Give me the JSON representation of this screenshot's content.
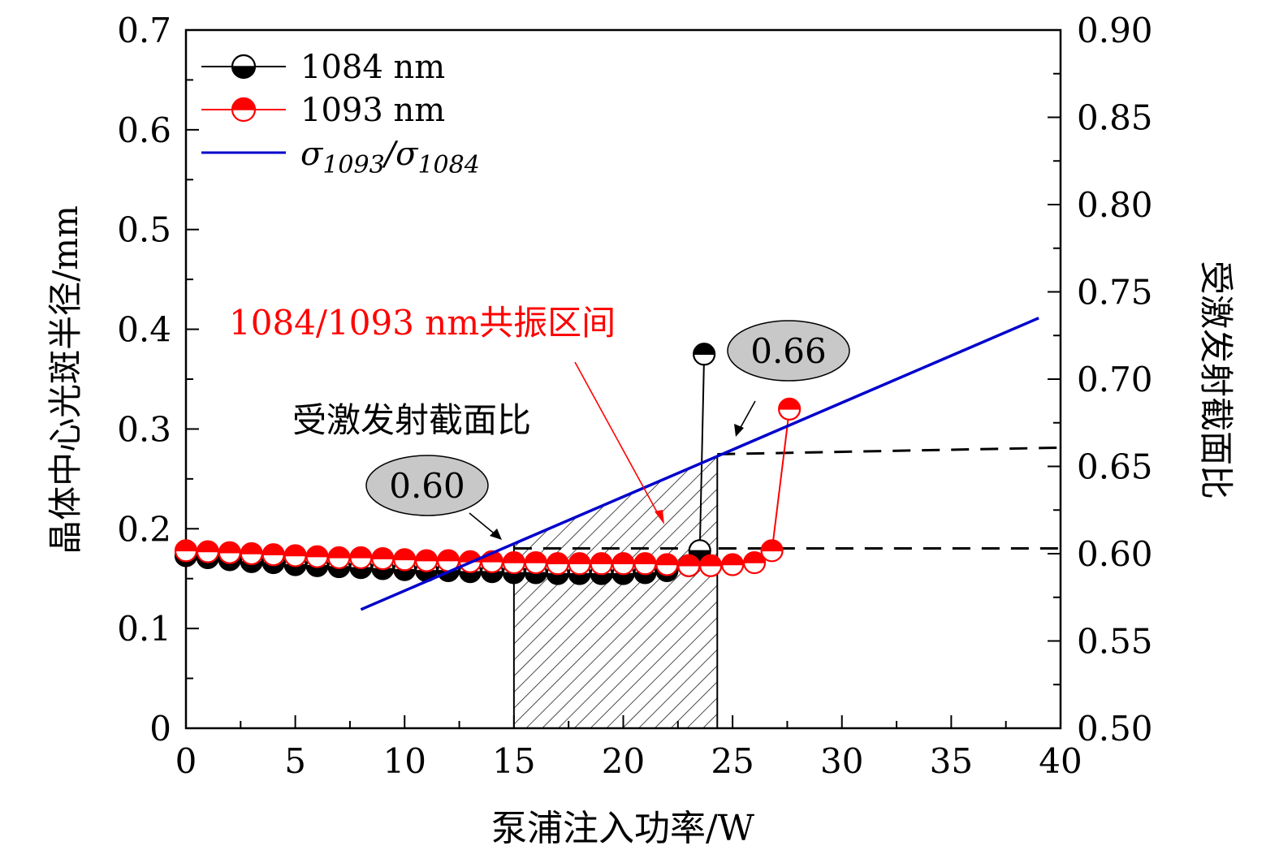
{
  "chart_data": {
    "type": "line",
    "xlabel": "泵浦注入功率/W",
    "ylabel_left": "晶体中心光斑半径/mm",
    "ylabel_right": "受激发射截面比",
    "xlim": [
      0,
      40
    ],
    "ylim_left": [
      0,
      0.7
    ],
    "ylim_right": [
      0.5,
      0.9
    ],
    "x_ticks": [
      "0",
      "5",
      "10",
      "15",
      "20",
      "25",
      "30",
      "35",
      "40"
    ],
    "y_left_ticks": [
      "0",
      "0.1",
      "0.2",
      "0.3",
      "0.4",
      "0.5",
      "0.6",
      "0.7"
    ],
    "y_right_ticks": [
      "0.50",
      "0.55",
      "0.60",
      "0.65",
      "0.70",
      "0.75",
      "0.80",
      "0.85",
      "0.90"
    ],
    "legend": {
      "placement": "top-left",
      "entries": [
        {
          "label": "1084 nm",
          "color": "#000000"
        },
        {
          "label": "1093 nm",
          "color": "#ff0000"
        },
        {
          "label": "σ1093/σ1084",
          "color": "#0000cc"
        }
      ]
    },
    "series": [
      {
        "name": "1084 nm",
        "axis": "left",
        "color": "#000000",
        "x": [
          0,
          1,
          2,
          3,
          4,
          5,
          6,
          7,
          8,
          9,
          10,
          11,
          12,
          13,
          14,
          15,
          16,
          17,
          18,
          19,
          20,
          21,
          22,
          23,
          23.5,
          23.7
        ],
        "y": [
          0.173,
          0.171,
          0.169,
          0.167,
          0.166,
          0.164,
          0.163,
          0.162,
          0.161,
          0.16,
          0.159,
          0.158,
          0.158,
          0.157,
          0.157,
          0.156,
          0.156,
          0.155,
          0.155,
          0.155,
          0.155,
          0.156,
          0.158,
          0.163,
          0.178,
          0.375
        ]
      },
      {
        "name": "1093 nm",
        "axis": "left",
        "color": "#ff0000",
        "x": [
          0,
          1,
          2,
          3,
          4,
          5,
          6,
          7,
          8,
          9,
          10,
          11,
          12,
          13,
          14,
          15,
          16,
          17,
          18,
          19,
          20,
          21,
          22,
          23,
          24,
          25,
          26,
          26.8,
          27.6
        ],
        "y": [
          0.178,
          0.177,
          0.176,
          0.175,
          0.174,
          0.173,
          0.172,
          0.171,
          0.171,
          0.17,
          0.169,
          0.168,
          0.168,
          0.167,
          0.167,
          0.166,
          0.166,
          0.165,
          0.165,
          0.165,
          0.165,
          0.165,
          0.164,
          0.163,
          0.163,
          0.164,
          0.166,
          0.178,
          0.32
        ]
      },
      {
        "name": "σ1093/σ1084",
        "axis": "right",
        "color": "#0000cc",
        "x": [
          8,
          39
        ],
        "y": [
          0.568,
          0.735
        ]
      }
    ],
    "annotations": [
      {
        "text": "受激发射截面比",
        "color": "#000000"
      },
      {
        "text": "1084/1093 nm共振区间",
        "color": "#ff0000"
      },
      {
        "text": "0.60",
        "style": "gray-ellipse"
      },
      {
        "text": "0.66",
        "style": "gray-ellipse"
      }
    ],
    "shaded_region": {
      "x": [
        15,
        24.3
      ],
      "style": "hatched"
    },
    "reference_lines": [
      {
        "axis": "right",
        "value": 0.603
      },
      {
        "axis": "right",
        "value": 0.657
      }
    ]
  }
}
